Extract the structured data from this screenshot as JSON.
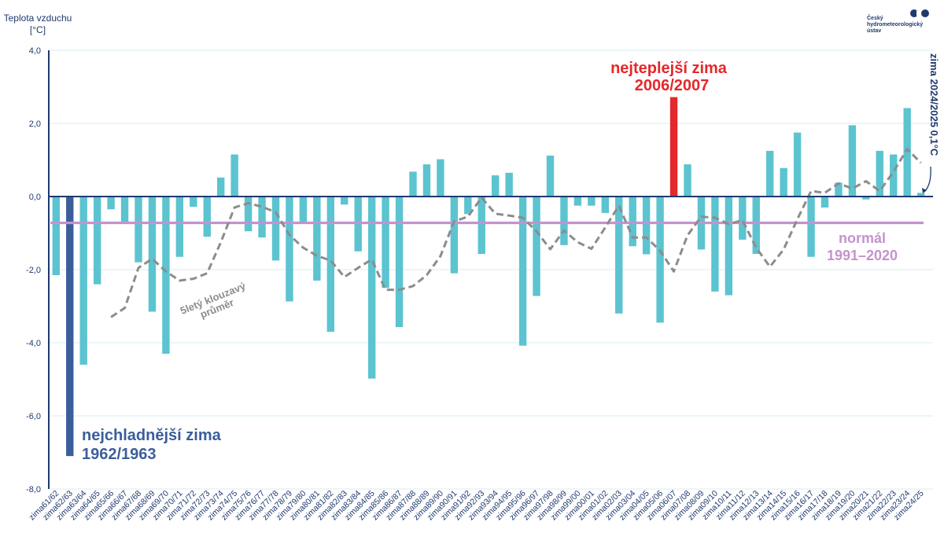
{
  "logo": {
    "line1": "Český",
    "line2": "hydrometeorologický",
    "line3": "ústav"
  },
  "chart_data": {
    "type": "bar",
    "ylabel_line1": "Teplota vzduchu",
    "ylabel_line2": "[°C]",
    "ylim": [
      -8,
      4
    ],
    "yticks": [
      "-8,0",
      "-6,0",
      "-4,0",
      "-2,0",
      "0,0",
      "2,0",
      "4,0"
    ],
    "grid": true,
    "categories": [
      "zima61/62",
      "zima62/63",
      "zima63/64",
      "zima64/65",
      "zima65/66",
      "zima66/67",
      "zima67/68",
      "zima68/69",
      "zima69/70",
      "zima70/71",
      "zima71/72",
      "zima72/73",
      "zima73/74",
      "zima74/75",
      "zima75/76",
      "zima76/77",
      "zima77/78",
      "zima78/79",
      "zima79/80",
      "zima80/81",
      "zima81/82",
      "zima82/83",
      "zima83/84",
      "zima84/85",
      "zima85/86",
      "zima86/87",
      "zima87/88",
      "zima88/89",
      "zima89/90",
      "zima90/91",
      "zima91/92",
      "zima92/93",
      "zima93/94",
      "zima94/95",
      "zima95/96",
      "zima96/97",
      "zima97/98",
      "zima98/99",
      "zima99/00",
      "zima00/01",
      "zima01/02",
      "zima02/03",
      "zima03/04",
      "zima04/05",
      "zima05/06",
      "zima06/07",
      "zima07/08",
      "zima08/09",
      "zima09/10",
      "zima10/11",
      "zima11/12",
      "zima12/13",
      "zima13/14",
      "zima14/15",
      "zima15/16",
      "zima16/17",
      "zima17/18",
      "zima18/19",
      "zima19/20",
      "zima20/21",
      "zima21/22",
      "zima22/23",
      "zima23/24",
      "zima24/25"
    ],
    "values": [
      -2.15,
      -7.1,
      -4.6,
      -2.4,
      -0.35,
      -0.7,
      -1.8,
      -3.15,
      -4.3,
      -1.65,
      -0.28,
      -1.1,
      0.52,
      1.15,
      -0.95,
      -1.12,
      -1.75,
      -2.87,
      -0.7,
      -2.3,
      -3.7,
      -0.22,
      -1.5,
      -4.98,
      -2.5,
      -3.57,
      0.68,
      0.88,
      1.02,
      -2.1,
      -0.48,
      -1.57,
      0.58,
      0.65,
      -4.08,
      -2.72,
      1.12,
      -1.33,
      -0.25,
      -0.25,
      -0.45,
      -3.2,
      -1.36,
      -1.58,
      -3.45,
      2.72,
      0.88,
      -1.45,
      -2.6,
      -2.7,
      -1.18,
      -1.57,
      1.25,
      0.78,
      1.75,
      -1.65,
      -0.3,
      0.38,
      1.95,
      -0.08,
      1.25,
      1.15,
      2.42,
      0.1
    ],
    "moving_average_label_line1": "5letý klouzavý",
    "moving_average_label_line2": "průměr",
    "moving_average": [
      null,
      null,
      null,
      null,
      -3.3,
      -3.05,
      -1.95,
      -1.7,
      -2.05,
      -2.3,
      -2.25,
      -2.1,
      -1.25,
      -0.3,
      -0.18,
      -0.28,
      -0.43,
      -1.05,
      -1.4,
      -1.62,
      -1.75,
      -2.2,
      -1.95,
      -1.72,
      -2.55,
      -2.55,
      -2.45,
      -2.15,
      -1.63,
      -0.68,
      -0.55,
      -0.03,
      -0.47,
      -0.52,
      -0.58,
      -0.95,
      -1.44,
      -0.93,
      -1.25,
      -1.43,
      -0.85,
      -0.25,
      -1.12,
      -1.12,
      -1.48,
      -2.05,
      -1.06,
      -0.55,
      -0.58,
      -0.75,
      -0.65,
      -1.4,
      -1.92,
      -1.45,
      -0.62,
      0.15,
      0.1,
      0.36,
      0.22,
      0.42,
      0.15,
      0.68,
      1.3,
      0.92
    ],
    "normal_value": -0.72,
    "normal_label_line1": "normál",
    "normal_label_line2": "1991–2020",
    "coldest_label_line1": "nejchladnější  zima",
    "coldest_label_line2": "1962/1963",
    "warmest_label_line1": "nejteplejší  zima",
    "warmest_label_line2": "2006/2007",
    "latest_label": "zima 2024/2025  0,1°C"
  },
  "colors": {
    "bar": "#5bc4d0",
    "coldest_bar": "#3b5e9b",
    "warmest_bar": "#e4282b",
    "normal_line": "#c493cf",
    "moving_average": "#8c8c8c",
    "axis": "#1f3a6e",
    "grid": "#d9eef2",
    "coldest_text": "#3b5e9b",
    "warmest_text": "#e4282b",
    "normal_text": "#c493cf"
  }
}
